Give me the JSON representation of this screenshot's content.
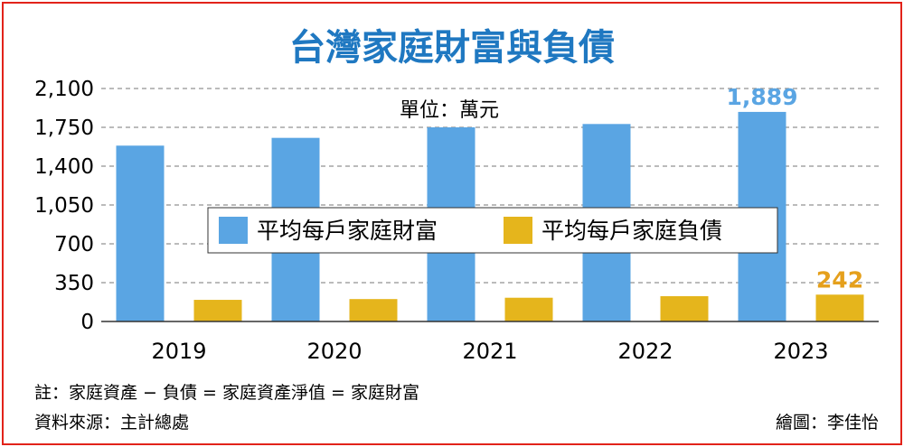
{
  "chart_data": {
    "type": "bar",
    "title": "台灣家庭財富與負債",
    "unit_label": "單位：萬元",
    "categories": [
      "2019",
      "2020",
      "2021",
      "2022",
      "2023"
    ],
    "y_ticks": [
      "0",
      "350",
      "700",
      "1,050",
      "1,400",
      "1,750",
      "2,100"
    ],
    "ylim": [
      0,
      2100
    ],
    "grid": true,
    "legend_position": "center",
    "series": [
      {
        "name": "平均每戶家庭財富",
        "color": "#5aa5e3",
        "values": [
          1585,
          1655,
          1750,
          1780,
          1889
        ],
        "end_label": "1,889",
        "end_label_color": "#5aa5e3"
      },
      {
        "name": "平均每戶家庭負債",
        "color": "#e5b51c",
        "values": [
          195,
          202,
          214,
          228,
          242
        ],
        "end_label": "242",
        "end_label_color": "#e5a01c"
      }
    ]
  },
  "footer": {
    "note": "註：家庭資產 − 負債 = 家庭資產淨值 = 家庭財富",
    "source": "資料來源：主計總處",
    "credit": "繪圖：李佳怡"
  }
}
